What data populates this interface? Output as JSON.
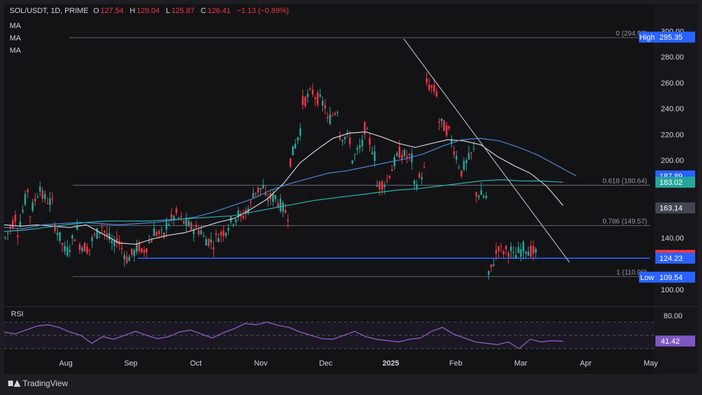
{
  "header": {
    "symbol": "SOL/USDT, 1D, PRIME",
    "o_label": "O",
    "o_value": "127.54",
    "h_label": "H",
    "h_value": "129.04",
    "l_label": "L",
    "l_value": "125.87",
    "c_label": "C",
    "c_value": "126.41",
    "change": "−1.13 (−0.89%)",
    "indicators": [
      "MA",
      "MA",
      "MA"
    ]
  },
  "branding": {
    "name": "TradingView"
  },
  "chart_data": {
    "type": "candlestick",
    "price_axis": {
      "ticks": [
        "300.00",
        "280.00",
        "260.00",
        "240.00",
        "220.00",
        "200.00",
        "140.00",
        "100.00"
      ],
      "range": [
        92,
        305
      ]
    },
    "time_axis": {
      "labels": [
        "Aug",
        "Sep",
        "Oct",
        "Nov",
        "Dec",
        "2025",
        "Feb",
        "Mar",
        "Apr",
        "May"
      ]
    },
    "ohlc_path": [
      [
        146,
        140
      ],
      [
        160,
        145
      ],
      [
        185,
        158
      ],
      [
        186,
        172
      ],
      [
        165,
        150
      ],
      [
        125,
        130
      ],
      [
        150,
        135
      ],
      [
        130,
        138
      ],
      [
        152,
        145
      ],
      [
        130,
        140
      ],
      [
        120,
        125
      ],
      [
        135,
        128
      ],
      [
        142,
        145
      ],
      [
        140,
        150
      ],
      [
        160,
        155
      ],
      [
        148,
        148
      ],
      [
        145,
        140
      ],
      [
        135,
        140
      ],
      [
        148,
        150
      ],
      [
        160,
        155
      ],
      [
        168,
        175
      ],
      [
        180,
        170
      ],
      [
        172,
        168
      ],
      [
        155,
        200
      ],
      [
        230,
        245
      ],
      [
        255,
        250
      ],
      [
        240,
        230
      ],
      [
        243,
        220
      ],
      [
        215,
        200
      ],
      [
        215,
        225
      ],
      [
        198,
        180
      ],
      [
        185,
        190
      ],
      [
        210,
        205
      ],
      [
        200,
        180
      ],
      [
        195,
        260
      ],
      [
        250,
        230
      ],
      [
        220,
        215
      ],
      [
        185,
        195
      ],
      [
        210,
        175
      ],
      [
        170,
        110
      ],
      [
        140,
        130
      ],
      [
        130,
        125
      ],
      [
        134,
        132
      ],
      [
        127
      ]
    ],
    "ma_lines": [
      {
        "color": "#d1d4dc",
        "values": [
          150,
          149,
          150,
          149,
          148,
          150,
          143,
          136,
          135,
          139,
          142,
          144,
          148,
          152,
          155,
          162,
          170,
          182,
          198,
          208,
          217,
          221,
          222,
          218,
          213,
          210,
          213,
          216,
          215,
          212,
          203,
          196,
          190,
          180,
          165
        ]
      },
      {
        "color": "#4e85d6",
        "values": [
          148,
          147,
          150,
          151,
          152,
          151,
          150,
          151,
          152,
          154,
          156,
          160,
          165,
          170,
          177,
          182,
          186,
          190,
          192,
          195,
          198,
          201,
          205,
          211,
          216,
          217,
          215,
          210,
          204,
          196,
          188
        ]
      },
      {
        "color": "#2bb3ac",
        "values": [
          145,
          146,
          148,
          150,
          152,
          153,
          153,
          153,
          154,
          155,
          156,
          157,
          160,
          163,
          166,
          169,
          171,
          173,
          175,
          177,
          178,
          180,
          182,
          184,
          185,
          184,
          184,
          183
        ]
      }
    ],
    "rsi": {
      "label": "RSI",
      "axis_tick": "80.00",
      "current": "41.42",
      "values": [
        55,
        52,
        58,
        64,
        66,
        62,
        55,
        50,
        38,
        48,
        44,
        50,
        56,
        50,
        45,
        48,
        55,
        58,
        52,
        46,
        54,
        60,
        68,
        66,
        70,
        65,
        62,
        55,
        50,
        45,
        44,
        50,
        56,
        48,
        44,
        42,
        40,
        44,
        46,
        56,
        62,
        52,
        46,
        40,
        38,
        36,
        40,
        30,
        44,
        40,
        42,
        41
      ]
    },
    "fib_levels": [
      {
        "label": "0 (294.93)",
        "price": 294.93
      },
      {
        "label": "0.618 (180.64)",
        "price": 180.64
      },
      {
        "label": "0.786 (149.57)",
        "price": 149.57
      },
      {
        "label": "1 (110.00)",
        "price": 110.0
      }
    ],
    "price_tags": [
      {
        "text": "High",
        "value": "295.35",
        "bg": "#2962ff",
        "price": 295.35
      },
      {
        "text": "",
        "value": "187.89",
        "bg": "#2962ff",
        "price": 187.89
      },
      {
        "text": "",
        "value": "183.02",
        "bg": "#26a69a",
        "price": 183.02
      },
      {
        "text": "",
        "value": "163.14",
        "bg": "#434651",
        "price": 163.14
      },
      {
        "text": "",
        "value": "126.41",
        "bg": "#f23645",
        "price": 126.41
      },
      {
        "text": "",
        "value": "124.23",
        "bg": "#2962ff",
        "price": 124.23
      },
      {
        "text": "Low",
        "value": "109.54",
        "bg": "#2962ff",
        "price": 109.54
      }
    ],
    "support_level": 124.23,
    "trendline": [
      [
        0.615,
        294
      ],
      [
        0.87,
        121
      ]
    ],
    "colors": {
      "up": "#26a69a",
      "down": "#f23645"
    }
  }
}
